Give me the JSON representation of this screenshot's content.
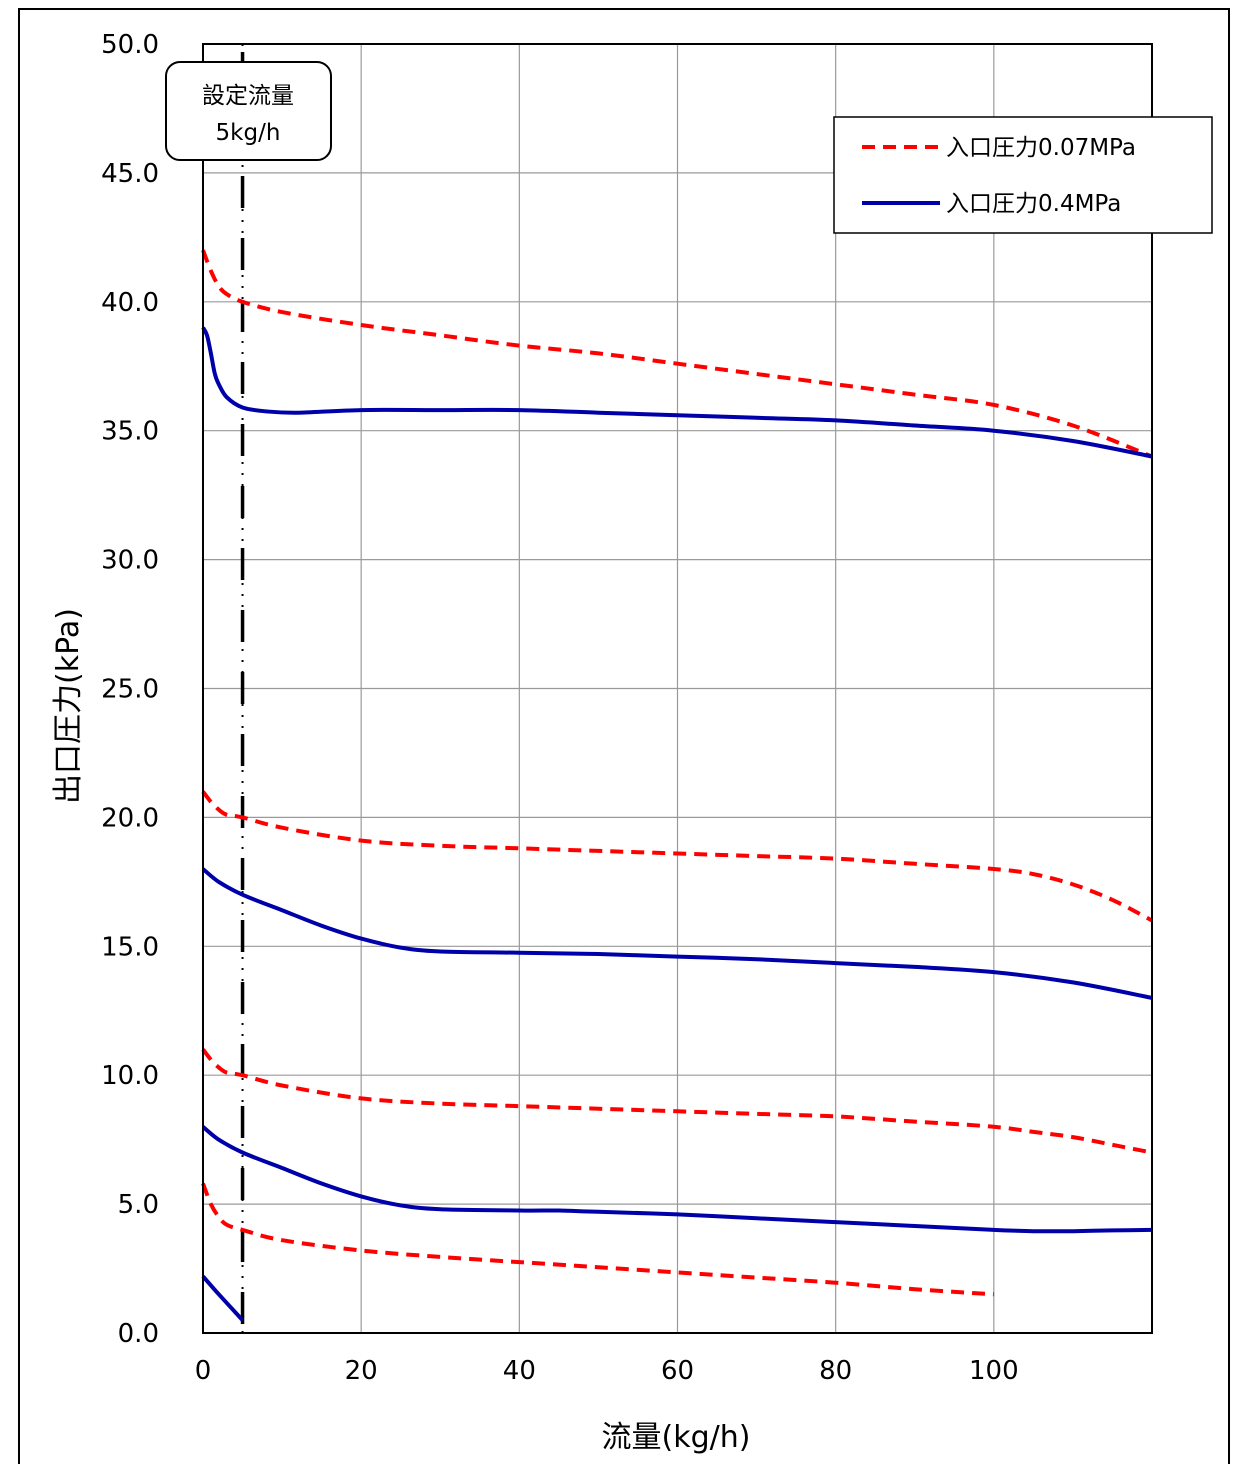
{
  "chart_data": {
    "type": "line",
    "title": "",
    "xlabel": "流量(kg/h)",
    "ylabel": "出口圧力(kPa)",
    "xlim": [
      0,
      120
    ],
    "ylim": [
      0,
      50
    ],
    "xticks": [
      0,
      20,
      40,
      60,
      80,
      100
    ],
    "xtick_labels": [
      "0",
      "20",
      "40",
      "60",
      "80",
      "100"
    ],
    "yticks": [
      0,
      5,
      10,
      15,
      20,
      25,
      30,
      35,
      40,
      45,
      50
    ],
    "ytick_labels": [
      "0.0",
      "5.0",
      "10.0",
      "15.0",
      "20.0",
      "25.0",
      "30.0",
      "35.0",
      "40.0",
      "45.0",
      "50.0"
    ],
    "grid": true,
    "legend_position": "top-right",
    "legend": [
      {
        "label": "入口圧力0.07MPa",
        "color": "#ff0000",
        "style": "dashed"
      },
      {
        "label": "入口圧力0.4MPa",
        "color": "#0000aa",
        "style": "solid"
      }
    ],
    "reference_line": {
      "x": 5,
      "label_line1": "設定流量",
      "label_line2": "5kg/h"
    },
    "series": [
      {
        "group": "入口圧力0.07MPa",
        "color": "#ff0000",
        "style": "dashed",
        "x": [
          0,
          1,
          2,
          3,
          5,
          10,
          20,
          30,
          40,
          50,
          60,
          70,
          80,
          90,
          100,
          110,
          120
        ],
        "y": [
          42.0,
          41.2,
          40.6,
          40.3,
          40.0,
          39.6,
          39.1,
          38.7,
          38.3,
          38.0,
          37.6,
          37.2,
          36.8,
          36.4,
          36.0,
          35.2,
          34.0
        ]
      },
      {
        "group": "入口圧力0.4MPa",
        "color": "#0000aa",
        "style": "solid",
        "x": [
          0,
          0.5,
          1,
          1.5,
          2,
          3,
          5,
          8,
          12,
          20,
          30,
          40,
          50,
          60,
          70,
          80,
          90,
          100,
          110,
          120
        ],
        "y": [
          39.0,
          38.7,
          38.0,
          37.2,
          36.8,
          36.3,
          35.9,
          35.75,
          35.7,
          35.8,
          35.8,
          35.8,
          35.7,
          35.6,
          35.5,
          35.4,
          35.2,
          35.0,
          34.6,
          34.0
        ]
      },
      {
        "group": "入口圧力0.07MPa",
        "color": "#ff0000",
        "style": "dashed",
        "x": [
          0,
          1,
          2,
          3,
          5,
          10,
          20,
          30,
          40,
          50,
          60,
          70,
          80,
          90,
          100,
          105,
          110,
          115,
          120
        ],
        "y": [
          21.0,
          20.6,
          20.3,
          20.1,
          20.0,
          19.6,
          19.1,
          18.9,
          18.8,
          18.7,
          18.6,
          18.5,
          18.4,
          18.2,
          18.0,
          17.8,
          17.4,
          16.8,
          16.0
        ]
      },
      {
        "group": "入口圧力0.4MPa",
        "color": "#0000aa",
        "style": "solid",
        "x": [
          0,
          2,
          5,
          10,
          15,
          20,
          25,
          30,
          40,
          50,
          60,
          70,
          80,
          90,
          100,
          110,
          120
        ],
        "y": [
          18.0,
          17.5,
          17.0,
          16.4,
          15.8,
          15.3,
          14.95,
          14.8,
          14.75,
          14.7,
          14.6,
          14.5,
          14.35,
          14.2,
          14.0,
          13.6,
          13.0
        ]
      },
      {
        "group": "入口圧力0.07MPa",
        "color": "#ff0000",
        "style": "dashed",
        "x": [
          0,
          1,
          2,
          3,
          5,
          10,
          20,
          30,
          40,
          50,
          60,
          70,
          80,
          90,
          100,
          105,
          110,
          115,
          120
        ],
        "y": [
          11.0,
          10.6,
          10.3,
          10.1,
          10.0,
          9.6,
          9.1,
          8.9,
          8.8,
          8.7,
          8.6,
          8.5,
          8.4,
          8.2,
          8.0,
          7.8,
          7.6,
          7.3,
          7.0
        ]
      },
      {
        "group": "入口圧力0.4MPa",
        "color": "#0000aa",
        "style": "solid",
        "x": [
          0,
          2,
          5,
          10,
          15,
          20,
          25,
          30,
          40,
          45,
          50,
          60,
          70,
          80,
          90,
          100,
          105,
          110,
          115,
          120
        ],
        "y": [
          8.0,
          7.5,
          7.0,
          6.4,
          5.8,
          5.3,
          4.95,
          4.8,
          4.75,
          4.75,
          4.7,
          4.6,
          4.45,
          4.3,
          4.15,
          4.0,
          3.95,
          3.95,
          3.98,
          4.0
        ]
      },
      {
        "group": "入口圧力0.07MPa",
        "color": "#ff0000",
        "style": "dashed",
        "x": [
          0,
          1,
          2,
          3,
          5,
          10,
          20,
          30,
          40,
          50,
          60,
          70,
          80,
          90,
          100
        ],
        "y": [
          5.8,
          5.0,
          4.5,
          4.2,
          4.0,
          3.6,
          3.2,
          2.95,
          2.75,
          2.55,
          2.35,
          2.15,
          1.95,
          1.7,
          1.5
        ]
      },
      {
        "group": "入口圧力0.4MPa",
        "color": "#0000aa",
        "style": "solid",
        "x": [
          0,
          2,
          5
        ],
        "y": [
          2.2,
          1.5,
          0.5
        ]
      }
    ]
  }
}
